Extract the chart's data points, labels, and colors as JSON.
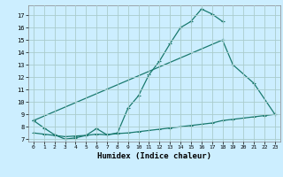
{
  "title": "",
  "xlabel": "Humidex (Indice chaleur)",
  "bg_color": "#cceeff",
  "grid_color": "#aacccc",
  "line_color": "#1a7a6e",
  "xlim": [
    -0.5,
    23.5
  ],
  "ylim": [
    6.8,
    17.8
  ],
  "yticks": [
    7,
    8,
    9,
    10,
    11,
    12,
    13,
    14,
    15,
    16,
    17
  ],
  "xticks": [
    0,
    1,
    2,
    3,
    4,
    5,
    6,
    7,
    8,
    9,
    10,
    11,
    12,
    13,
    14,
    15,
    16,
    17,
    18,
    19,
    20,
    21,
    22,
    23
  ],
  "curve1_x": [
    0,
    1,
    2,
    3,
    4,
    5,
    6,
    7,
    8,
    9,
    10,
    11,
    12,
    13,
    14,
    15,
    16,
    17,
    18
  ],
  "curve1_y": [
    8.5,
    7.9,
    7.35,
    7.0,
    7.1,
    7.3,
    7.85,
    7.35,
    7.5,
    9.5,
    10.5,
    12.2,
    13.3,
    14.7,
    16.0,
    16.5,
    17.5,
    17.1,
    16.5
  ],
  "curve2_x": [
    0,
    18,
    19,
    21,
    23
  ],
  "curve2_y": [
    8.5,
    15.0,
    13.0,
    11.5,
    9.0
  ],
  "curve3_x": [
    0,
    1,
    2,
    3,
    4,
    5,
    6,
    7,
    8,
    9,
    10,
    11,
    12,
    13,
    14,
    15,
    16,
    17,
    18,
    19,
    20,
    21,
    22,
    23
  ],
  "curve3_y": [
    7.5,
    7.4,
    7.3,
    7.2,
    7.25,
    7.3,
    7.4,
    7.35,
    7.45,
    7.5,
    7.6,
    7.7,
    7.8,
    7.9,
    8.0,
    8.1,
    8.2,
    8.3,
    8.5,
    8.6,
    8.7,
    8.8,
    8.9,
    9.0
  ]
}
